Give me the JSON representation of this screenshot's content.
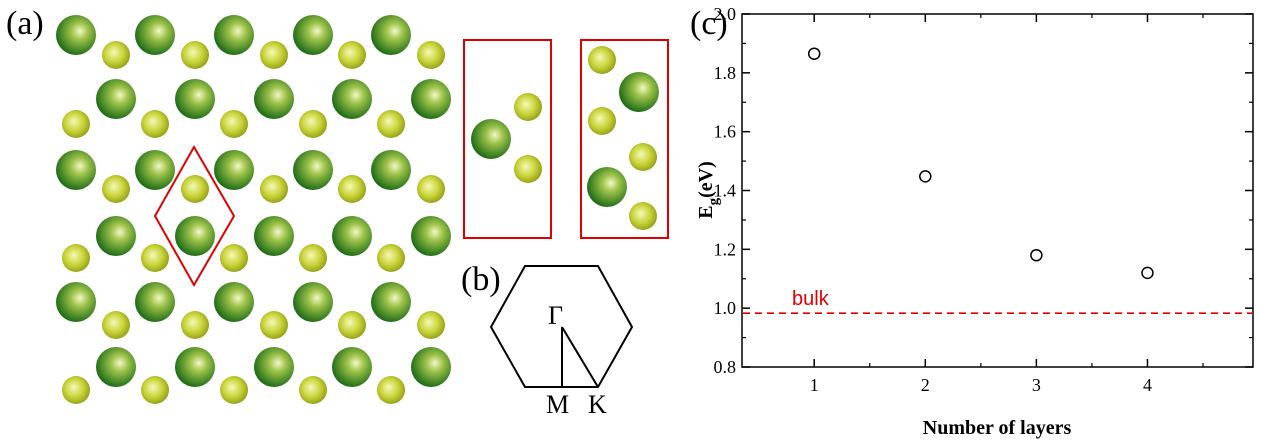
{
  "panels": {
    "a": "(a)",
    "b": "(b)",
    "c": "(c)"
  },
  "brillouin_zone": {
    "labels": {
      "gamma": "Γ",
      "m": "M",
      "k": "K"
    }
  },
  "colors": {
    "large_atom": "#1c6b16",
    "small_atom": "#a9b61a",
    "highlight": "#e00000"
  },
  "chart_data": {
    "type": "scatter",
    "title": "",
    "xlabel": "Number of layers",
    "ylabel": "E_g(eV)",
    "ylabel_main": "E",
    "ylabel_sub": "g",
    "ylabel_tail": "(eV)",
    "xlim": [
      0.35,
      4.95
    ],
    "ylim": [
      0.8,
      2.0
    ],
    "xticks": [
      1,
      2,
      3,
      4
    ],
    "yticks": [
      0.8,
      1.0,
      1.2,
      1.4,
      1.6,
      1.8,
      2.0
    ],
    "ytick_labels": [
      "0.8",
      "1.0",
      "1.2",
      "1.4",
      "1.6",
      "1.8",
      "2.0"
    ],
    "x": [
      1,
      2,
      3,
      4
    ],
    "y": [
      1.865,
      1.448,
      1.18,
      1.12
    ],
    "reference_line": {
      "label": "bulk",
      "y": 0.983,
      "style": "dashed",
      "color": "#e00000"
    },
    "grid": false,
    "marker": "open-circle"
  }
}
